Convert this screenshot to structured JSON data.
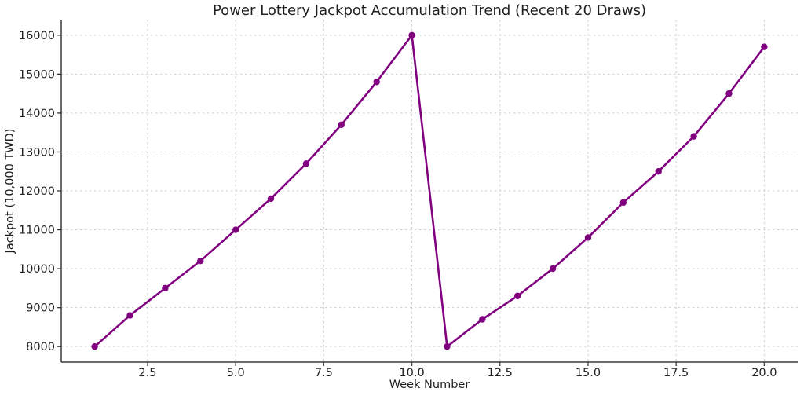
{
  "chart_data": {
    "type": "line",
    "title": "Power Lottery Jackpot Accumulation Trend (Recent 20 Draws)",
    "xlabel": "Week Number",
    "ylabel": "Jackpot (10,000 TWD)",
    "x": [
      1,
      2,
      3,
      4,
      5,
      6,
      7,
      8,
      9,
      10,
      11,
      12,
      13,
      14,
      15,
      16,
      17,
      18,
      19,
      20
    ],
    "series": [
      {
        "name": "Jackpot",
        "values": [
          8000,
          8800,
          9500,
          10200,
          11000,
          11800,
          12700,
          13700,
          14800,
          16000,
          8000,
          8700,
          9300,
          10000,
          10800,
          11700,
          12500,
          13400,
          14500,
          15700
        ]
      }
    ],
    "xlim": [
      0.05,
      20.95
    ],
    "ylim": [
      7600,
      16400
    ],
    "xticks": {
      "values": [
        2.5,
        5.0,
        7.5,
        10.0,
        12.5,
        15.0,
        17.5,
        20.0
      ],
      "labels": [
        "2.5",
        "5.0",
        "7.5",
        "10.0",
        "12.5",
        "15.0",
        "17.5",
        "20.0"
      ]
    },
    "yticks": {
      "values": [
        8000,
        9000,
        10000,
        11000,
        12000,
        13000,
        14000,
        15000,
        16000
      ],
      "labels": [
        "8000",
        "9000",
        "10000",
        "11000",
        "12000",
        "13000",
        "14000",
        "15000",
        "16000"
      ]
    },
    "grid": "both-dashed",
    "legend_position": "none",
    "colors": {
      "line": "#800080",
      "marker": "#800080",
      "grid": "#cdcdcd",
      "axis": "#3a3a3a",
      "text": "#1f1f1f",
      "background": "#ffffff"
    }
  }
}
